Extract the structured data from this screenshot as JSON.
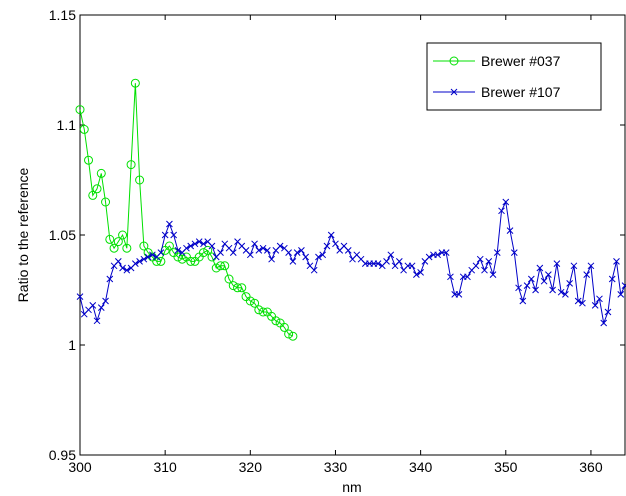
{
  "chart_data": {
    "type": "line",
    "xlabel": "nm",
    "ylabel": "Ratio to the reference",
    "xlim": [
      300,
      364
    ],
    "ylim": [
      0.95,
      1.15
    ],
    "xticks": [
      300,
      310,
      320,
      330,
      340,
      350,
      360
    ],
    "yticks": [
      0.95,
      1,
      1.05,
      1.1,
      1.15
    ],
    "legend": "upper right",
    "series": [
      {
        "name": "Brewer #037",
        "color": "#00e000",
        "marker": "o",
        "x": [
          300,
          300.5,
          301,
          301.5,
          302,
          302.5,
          303,
          303.5,
          304,
          304.5,
          305,
          305.5,
          306,
          306.5,
          307,
          307.5,
          308,
          308.5,
          309,
          309.5,
          310,
          310.5,
          311,
          311.5,
          312,
          312.5,
          313,
          313.5,
          314,
          314.5,
          315,
          315.5,
          316,
          316.5,
          317,
          317.5,
          318,
          318.5,
          319,
          319.5,
          320,
          320.5,
          321,
          321.5,
          322,
          322.5,
          323,
          323.5,
          324,
          324.5,
          325
        ],
        "values": [
          1.107,
          1.098,
          1.084,
          1.068,
          1.071,
          1.078,
          1.065,
          1.048,
          1.044,
          1.047,
          1.05,
          1.044,
          1.082,
          1.119,
          1.075,
          1.045,
          1.042,
          1.04,
          1.038,
          1.038,
          1.043,
          1.045,
          1.042,
          1.04,
          1.039,
          1.04,
          1.038,
          1.038,
          1.04,
          1.042,
          1.043,
          1.04,
          1.035,
          1.036,
          1.036,
          1.03,
          1.027,
          1.026,
          1.026,
          1.022,
          1.02,
          1.019,
          1.016,
          1.015,
          1.015,
          1.013,
          1.011,
          1.01,
          1.008,
          1.005,
          1.004
        ]
      },
      {
        "name": "Brewer #107",
        "color": "#0000c8",
        "marker": "x",
        "x": [
          300,
          300.5,
          301,
          301.5,
          302,
          302.5,
          303,
          303.5,
          304,
          304.5,
          305,
          305.5,
          306,
          306.5,
          307,
          307.5,
          308,
          308.5,
          309,
          309.5,
          310,
          310.5,
          311,
          311.5,
          312,
          312.5,
          313,
          313.5,
          314,
          314.5,
          315,
          315.5,
          316,
          316.5,
          317,
          317.5,
          318,
          318.5,
          319,
          319.5,
          320,
          320.5,
          321,
          321.5,
          322,
          322.5,
          323,
          323.5,
          324,
          324.5,
          325,
          325.5,
          326,
          326.5,
          327,
          327.5,
          328,
          328.5,
          329,
          329.5,
          330,
          330.5,
          331,
          331.5,
          332,
          332.5,
          333,
          333.5,
          334,
          334.5,
          335,
          335.5,
          336,
          336.5,
          337,
          337.5,
          338,
          338.5,
          339,
          339.5,
          340,
          340.5,
          341,
          341.5,
          342,
          342.5,
          343,
          343.5,
          344,
          344.5,
          345,
          345.5,
          346,
          346.5,
          347,
          347.5,
          348,
          348.5,
          349,
          349.5,
          350,
          350.5,
          351,
          351.5,
          352,
          352.5,
          353,
          353.5,
          354,
          354.5,
          355,
          355.5,
          356,
          356.5,
          357,
          357.5,
          358,
          358.5,
          359,
          359.5,
          360,
          360.5,
          361,
          361.5,
          362,
          362.5,
          363,
          363.5,
          364
        ],
        "values": [
          1.022,
          1.014,
          1.016,
          1.018,
          1.011,
          1.017,
          1.02,
          1.03,
          1.036,
          1.038,
          1.035,
          1.034,
          1.035,
          1.037,
          1.038,
          1.039,
          1.04,
          1.041,
          1.04,
          1.042,
          1.05,
          1.055,
          1.05,
          1.043,
          1.042,
          1.044,
          1.045,
          1.046,
          1.047,
          1.046,
          1.047,
          1.045,
          1.04,
          1.042,
          1.046,
          1.044,
          1.042,
          1.047,
          1.045,
          1.043,
          1.041,
          1.046,
          1.043,
          1.044,
          1.043,
          1.039,
          1.043,
          1.045,
          1.044,
          1.042,
          1.038,
          1.042,
          1.043,
          1.04,
          1.036,
          1.034,
          1.04,
          1.041,
          1.045,
          1.05,
          1.046,
          1.043,
          1.045,
          1.043,
          1.039,
          1.041,
          1.039,
          1.037,
          1.037,
          1.037,
          1.037,
          1.036,
          1.038,
          1.041,
          1.036,
          1.038,
          1.034,
          1.036,
          1.036,
          1.032,
          1.033,
          1.038,
          1.04,
          1.041,
          1.041,
          1.042,
          1.042,
          1.031,
          1.023,
          1.023,
          1.031,
          1.031,
          1.034,
          1.036,
          1.039,
          1.034,
          1.038,
          1.032,
          1.042,
          1.061,
          1.065,
          1.052,
          1.042,
          1.026,
          1.02,
          1.027,
          1.03,
          1.025,
          1.035,
          1.029,
          1.032,
          1.025,
          1.037,
          1.024,
          1.023,
          1.028,
          1.036,
          1.02,
          1.019,
          1.032,
          1.036,
          1.018,
          1.021,
          1.01,
          1.015,
          1.03,
          1.038,
          1.023,
          1.027
        ]
      }
    ]
  }
}
